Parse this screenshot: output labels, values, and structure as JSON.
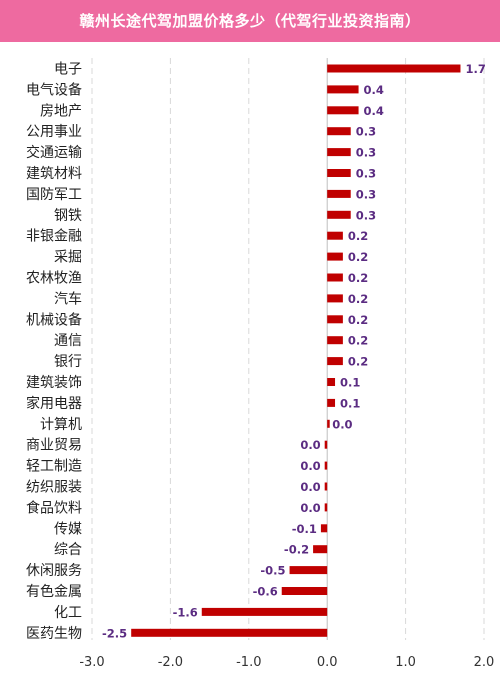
{
  "header": {
    "title": "赣州长途代驾加盟价格多少（代驾行业投资指南）"
  },
  "colors": {
    "banner": "#ee6aa0",
    "bar": "#c00000",
    "value_label": "#5b2c82",
    "grid": "#d9d9d9"
  },
  "chart_data": {
    "type": "bar",
    "orientation": "horizontal",
    "categories": [
      "电子",
      "电气设备",
      "房地产",
      "公用事业",
      "交通运输",
      "建筑材料",
      "国防军工",
      "钢铁",
      "非银金融",
      "采掘",
      "农林牧渔",
      "汽车",
      "机械设备",
      "通信",
      "银行",
      "建筑装饰",
      "家用电器",
      "计算机",
      "商业贸易",
      "轻工制造",
      "纺织服装",
      "食品饮料",
      "传媒",
      "综合",
      "休闲服务",
      "有色金属",
      "化工",
      "医药生物"
    ],
    "values": [
      1.7,
      0.4,
      0.4,
      0.3,
      0.3,
      0.3,
      0.3,
      0.3,
      0.2,
      0.2,
      0.2,
      0.2,
      0.2,
      0.2,
      0.2,
      0.1,
      0.1,
      0.0,
      -0.02,
      -0.02,
      -0.02,
      -0.02,
      -0.08,
      -0.18,
      -0.48,
      -0.58,
      -1.6,
      -2.5
    ],
    "value_labels": [
      "1.7",
      "0.4",
      "0.4",
      "0.3",
      "0.3",
      "0.3",
      "0.3",
      "0.3",
      "0.2",
      "0.2",
      "0.2",
      "0.2",
      "0.2",
      "0.2",
      "0.2",
      "0.1",
      "0.1",
      "0.0",
      "0.0",
      "0.0",
      "0.0",
      "0.0",
      "-0.1",
      "-0.2",
      "-0.5",
      "-0.6",
      "-1.6",
      "-2.5"
    ],
    "xlim": [
      -3.0,
      2.0
    ],
    "xticks": [
      -3.0,
      -2.0,
      -1.0,
      0.0,
      1.0,
      2.0
    ],
    "xtick_labels": [
      "-3.0",
      "-2.0",
      "-1.0",
      "0.0",
      "1.0",
      "2.0"
    ],
    "grid": "vertical",
    "title": "",
    "xlabel": "",
    "ylabel": ""
  }
}
